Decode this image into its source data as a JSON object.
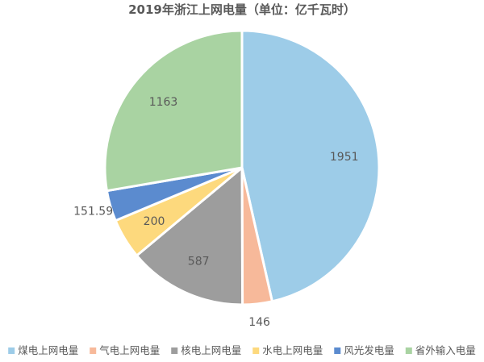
{
  "chart_data": {
    "type": "pie",
    "title": "2019年浙江上网电量（单位：亿千瓦时）",
    "categories": [
      "煤电上网电量",
      "气电上网电量",
      "核电上网电量",
      "水电上网电量",
      "风光发电量",
      "省外输入电量"
    ],
    "values": [
      1951,
      146,
      587,
      200,
      151.59,
      1163
    ],
    "value_labels": [
      "1951",
      "146",
      "587",
      "200",
      "151.59",
      "1163"
    ],
    "colors": [
      "#9DCCE8",
      "#F7B99A",
      "#9D9D9D",
      "#FDD97D",
      "#5B8BCF",
      "#A9D3A2"
    ],
    "start_angle_deg": 0,
    "direction": "clockwise",
    "legend_position": "bottom",
    "labels_inside": [
      true,
      false,
      true,
      true,
      false,
      true
    ]
  }
}
